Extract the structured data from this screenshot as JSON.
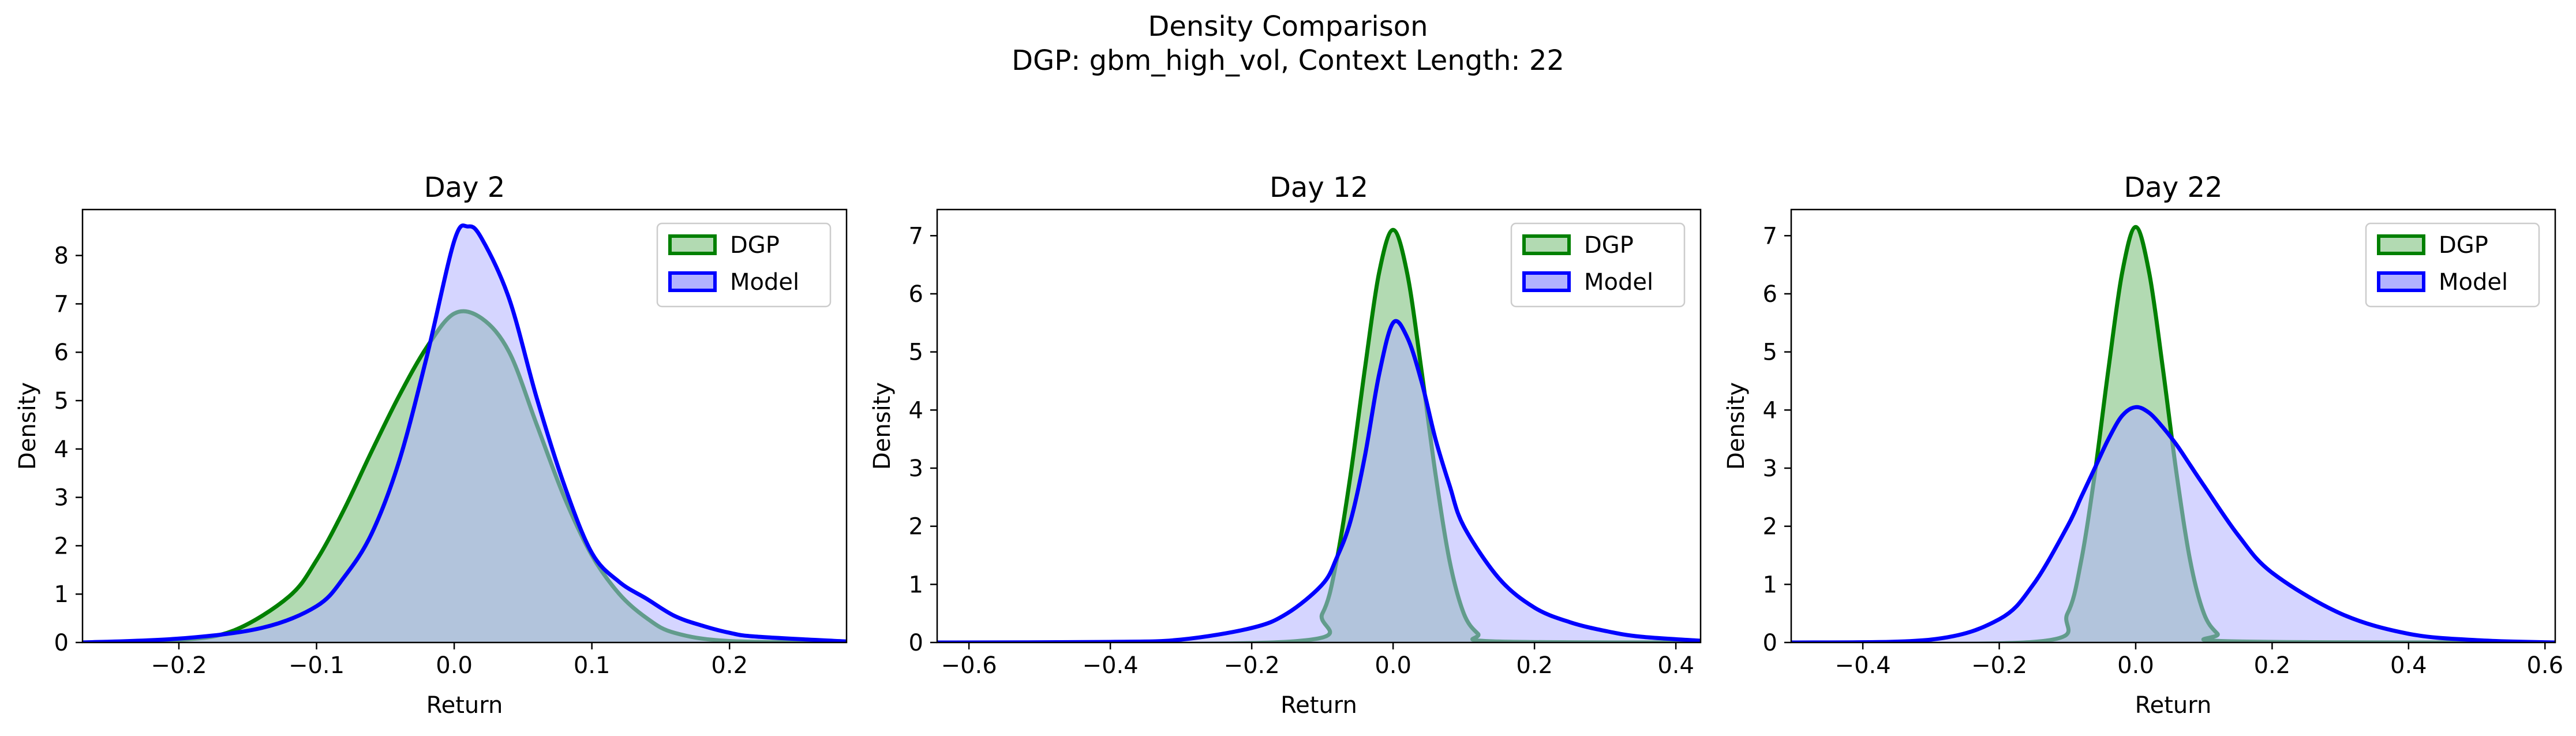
{
  "figure": {
    "title_line1": "Density Comparison",
    "title_line2": "DGP: gbm_high_vol, Context Length: 22"
  },
  "colors": {
    "dgp_line": "#008000",
    "dgp_fill": "#b2dab2",
    "model_line": "#0000ff",
    "model_fill": "#b2b2ff",
    "overlap_fill": "#7f99c9"
  },
  "chart_data": [
    {
      "type": "area",
      "title": "Day 2",
      "xlabel": "Return",
      "ylabel": "Density",
      "xlim": [
        -0.27,
        0.285
      ],
      "ylim": [
        0,
        8.95
      ],
      "xticks": [
        -0.2,
        -0.1,
        0.0,
        0.1,
        0.2
      ],
      "xtick_labels": [
        "−0.2",
        "−0.1",
        "0.0",
        "0.1",
        "0.2"
      ],
      "yticks": [
        0,
        1,
        2,
        3,
        4,
        5,
        6,
        7,
        8
      ],
      "ytick_labels": [
        "0",
        "1",
        "2",
        "3",
        "4",
        "5",
        "6",
        "7",
        "8"
      ],
      "legend": [
        "DGP",
        "Model"
      ],
      "legend_loc": "upper right",
      "series": [
        {
          "name": "DGP",
          "x": [
            -0.27,
            -0.2,
            -0.16,
            -0.12,
            -0.1,
            -0.08,
            -0.06,
            -0.04,
            -0.02,
            0.0,
            0.02,
            0.04,
            0.06,
            0.08,
            0.1,
            0.12,
            0.14,
            0.16,
            0.2,
            0.285
          ],
          "y": [
            0.0,
            0.05,
            0.25,
            0.95,
            1.7,
            2.75,
            3.95,
            5.1,
            6.1,
            6.8,
            6.7,
            6.0,
            4.5,
            3.0,
            1.8,
            1.0,
            0.5,
            0.2,
            0.03,
            0.0
          ]
        },
        {
          "name": "Model",
          "x": [
            -0.27,
            -0.2,
            -0.14,
            -0.1,
            -0.08,
            -0.06,
            -0.04,
            -0.02,
            0.0,
            0.01,
            0.02,
            0.04,
            0.06,
            0.08,
            0.1,
            0.12,
            0.14,
            0.16,
            0.18,
            0.2,
            0.22,
            0.285
          ],
          "y": [
            0.0,
            0.08,
            0.3,
            0.75,
            1.35,
            2.25,
            3.75,
            5.9,
            8.3,
            8.6,
            8.35,
            7.1,
            5.05,
            3.25,
            1.85,
            1.25,
            0.9,
            0.55,
            0.35,
            0.2,
            0.12,
            0.02
          ]
        }
      ]
    },
    {
      "type": "area",
      "title": "Day 12",
      "xlabel": "Return",
      "ylabel": "Density",
      "xlim": [
        -0.645,
        0.435
      ],
      "ylim": [
        0,
        7.45
      ],
      "xticks": [
        -0.6,
        -0.4,
        -0.2,
        0.0,
        0.2,
        0.4
      ],
      "xtick_labels": [
        "−0.6",
        "−0.4",
        "−0.2",
        "0.0",
        "0.2",
        "0.4"
      ],
      "yticks": [
        0,
        1,
        2,
        3,
        4,
        5,
        6,
        7
      ],
      "ytick_labels": [
        "0",
        "1",
        "2",
        "3",
        "4",
        "5",
        "6",
        "7"
      ],
      "legend": [
        "DGP",
        "Model"
      ],
      "legend_loc": "upper right",
      "series": [
        {
          "name": "DGP",
          "x": [
            -0.645,
            -0.14,
            -0.1,
            -0.08,
            -0.06,
            -0.04,
            -0.02,
            0.0,
            0.02,
            0.04,
            0.06,
            0.08,
            0.1,
            0.12,
            0.14,
            0.435
          ],
          "y": [
            0.0,
            0.02,
            0.5,
            1.4,
            2.9,
            4.7,
            6.35,
            7.1,
            6.35,
            4.7,
            2.9,
            1.4,
            0.5,
            0.15,
            0.02,
            0.0
          ]
        },
        {
          "name": "Model",
          "x": [
            -0.645,
            -0.4,
            -0.3,
            -0.2,
            -0.15,
            -0.1,
            -0.08,
            -0.06,
            -0.04,
            -0.02,
            0.0,
            0.02,
            0.04,
            0.06,
            0.08,
            0.1,
            0.15,
            0.2,
            0.25,
            0.3,
            0.35,
            0.435
          ],
          "y": [
            0.0,
            0.01,
            0.05,
            0.25,
            0.5,
            1.0,
            1.45,
            2.1,
            3.2,
            4.6,
            5.5,
            5.25,
            4.5,
            3.5,
            2.7,
            2.0,
            1.1,
            0.6,
            0.35,
            0.2,
            0.1,
            0.03
          ]
        }
      ]
    },
    {
      "type": "area",
      "title": "Day 22",
      "xlabel": "Return",
      "ylabel": "Density",
      "xlim": [
        -0.505,
        0.615
      ],
      "ylim": [
        0,
        7.45
      ],
      "xticks": [
        -0.4,
        -0.2,
        0.0,
        0.2,
        0.4,
        0.6
      ],
      "xtick_labels": [
        "−0.4",
        "−0.2",
        "0.0",
        "0.2",
        "0.4",
        "0.6"
      ],
      "yticks": [
        0,
        1,
        2,
        3,
        4,
        5,
        6,
        7
      ],
      "ytick_labels": [
        "0",
        "1",
        "2",
        "3",
        "4",
        "5",
        "6",
        "7"
      ],
      "legend": [
        "DGP",
        "Model"
      ],
      "legend_loc": "upper right",
      "series": [
        {
          "name": "DGP",
          "x": [
            -0.505,
            -0.14,
            -0.1,
            -0.08,
            -0.06,
            -0.04,
            -0.02,
            0.0,
            0.02,
            0.04,
            0.06,
            0.08,
            0.1,
            0.12,
            0.14,
            0.615
          ],
          "y": [
            0.0,
            0.02,
            0.5,
            1.4,
            2.9,
            4.7,
            6.35,
            7.15,
            6.35,
            4.7,
            2.9,
            1.4,
            0.5,
            0.15,
            0.02,
            0.0
          ]
        },
        {
          "name": "Model",
          "x": [
            -0.505,
            -0.3,
            -0.2,
            -0.15,
            -0.1,
            -0.08,
            -0.06,
            -0.04,
            -0.02,
            0.0,
            0.02,
            0.04,
            0.06,
            0.08,
            0.1,
            0.15,
            0.2,
            0.3,
            0.4,
            0.5,
            0.615
          ],
          "y": [
            0.0,
            0.05,
            0.4,
            1.0,
            2.0,
            2.5,
            3.0,
            3.5,
            3.9,
            4.05,
            3.95,
            3.7,
            3.4,
            3.05,
            2.7,
            1.85,
            1.2,
            0.5,
            0.15,
            0.04,
            0.0
          ]
        }
      ]
    }
  ]
}
